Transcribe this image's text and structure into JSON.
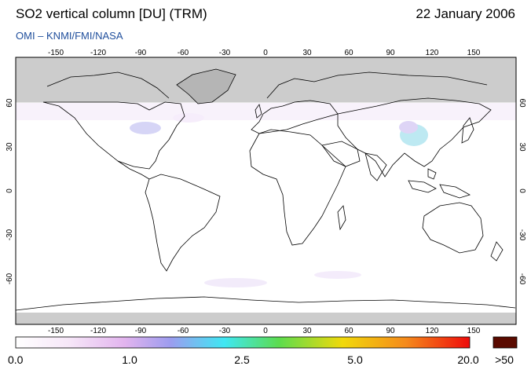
{
  "header": {
    "title": "SO2 vertical column [DU] (TRM)",
    "date": "22 January 2006",
    "credit": "OMI  –  KNMI/FMI/NASA"
  },
  "map": {
    "lon_ticks": [
      "-150",
      "-120",
      "-90",
      "-60",
      "-30",
      "0",
      "30",
      "60",
      "90",
      "120",
      "150"
    ],
    "lat_ticks_left": [
      "60",
      "30",
      "0",
      "-30",
      "-60"
    ],
    "lat_ticks_right": [
      "60",
      "30",
      "0",
      "-30",
      "-60"
    ],
    "nodata_color": "#cccccc",
    "land_outline_color": "#000000"
  },
  "colorbar": {
    "labels": [
      "0.0",
      "1.0",
      "2.5",
      "5.0",
      "20.0"
    ],
    "overflow_label": ">50",
    "overflow_color": "#5a0a00",
    "stops": [
      "#ffffff",
      "#f6e6f8",
      "#e2b4ee",
      "#9d9cef",
      "#3fe7f3",
      "#5cdc4e",
      "#f1d90a",
      "#f58a1c",
      "#ee0b0b"
    ]
  }
}
